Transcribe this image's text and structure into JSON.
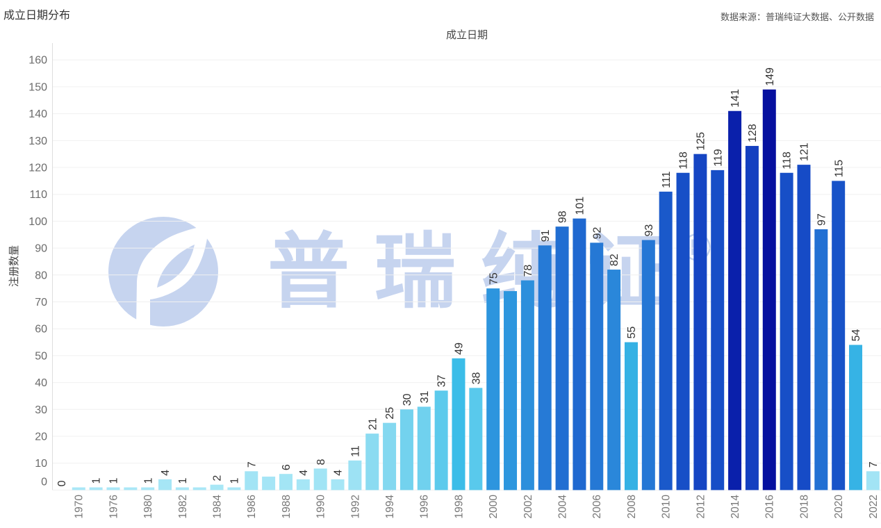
{
  "source_note": "数据来源：普瑞纯证大数据、公开数据",
  "watermark": {
    "text": "普瑞纯证",
    "mark": "®",
    "logo": "leaf-circle-logo-icon",
    "color": "#3264c8"
  },
  "colors": {
    "grid": "#f0f0f0",
    "axis_line": "#dddddd"
  },
  "chart_data": {
    "type": "bar",
    "title": "成立日期分布",
    "xlabel": "成立日期",
    "ylabel": "注册数量",
    "ylim": [
      0,
      166
    ],
    "yticks": [
      0,
      10,
      20,
      30,
      40,
      50,
      60,
      70,
      80,
      90,
      100,
      110,
      120,
      130,
      140,
      150,
      160
    ],
    "grid": true,
    "legend": "none",
    "categories": [
      "",
      "1970",
      "",
      "1976",
      "",
      "1980",
      "",
      "1982",
      "",
      "1984",
      "",
      "1986",
      "",
      "1988",
      "",
      "1990",
      "",
      "1992",
      "",
      "1994",
      "",
      "1996",
      "",
      "1998",
      "",
      "2000",
      "",
      "2002",
      "",
      "2004",
      "",
      "2006",
      "",
      "2008",
      "",
      "2010",
      "",
      "2012",
      "",
      "2014",
      "",
      "2016",
      "",
      "2018",
      "",
      "2020",
      "",
      "2022"
    ],
    "values": [
      0,
      1,
      1,
      1,
      1,
      1,
      4,
      1,
      1,
      2,
      1,
      7,
      5,
      6,
      4,
      8,
      4,
      11,
      21,
      25,
      30,
      31,
      37,
      49,
      38,
      75,
      74,
      78,
      91,
      98,
      101,
      92,
      82,
      55,
      93,
      111,
      118,
      125,
      119,
      141,
      128,
      149,
      118,
      121,
      97,
      115,
      54,
      7
    ],
    "value_labels": [
      "0",
      "",
      "1",
      "1",
      "",
      "1",
      "4",
      "1",
      "",
      "2",
      "1",
      "7",
      "",
      "6",
      "4",
      "8",
      "4",
      "11",
      "21",
      "25",
      "30",
      "31",
      "37",
      "49",
      "38",
      "75",
      "",
      "78",
      "91",
      "98",
      "101",
      "92",
      "82",
      "55",
      "93",
      "111",
      "118",
      "125",
      "119",
      "141",
      "128",
      "149",
      "118",
      "121",
      "97",
      "115",
      "54",
      "7"
    ],
    "color_scale": [
      [
        0,
        "#abe8f7"
      ],
      [
        11,
        "#9de2f4"
      ],
      [
        25,
        "#84d8f0"
      ],
      [
        37,
        "#5ccaec"
      ],
      [
        49,
        "#3bbde8"
      ],
      [
        55,
        "#35b1e4"
      ],
      [
        75,
        "#2d95de"
      ],
      [
        82,
        "#2a87da"
      ],
      [
        93,
        "#2577d5"
      ],
      [
        101,
        "#1f68d0"
      ],
      [
        111,
        "#1a59ca"
      ],
      [
        121,
        "#164bc6"
      ],
      [
        128,
        "#1440c0"
      ],
      [
        141,
        "#0a20ab"
      ],
      [
        149,
        "#06109f"
      ]
    ]
  }
}
